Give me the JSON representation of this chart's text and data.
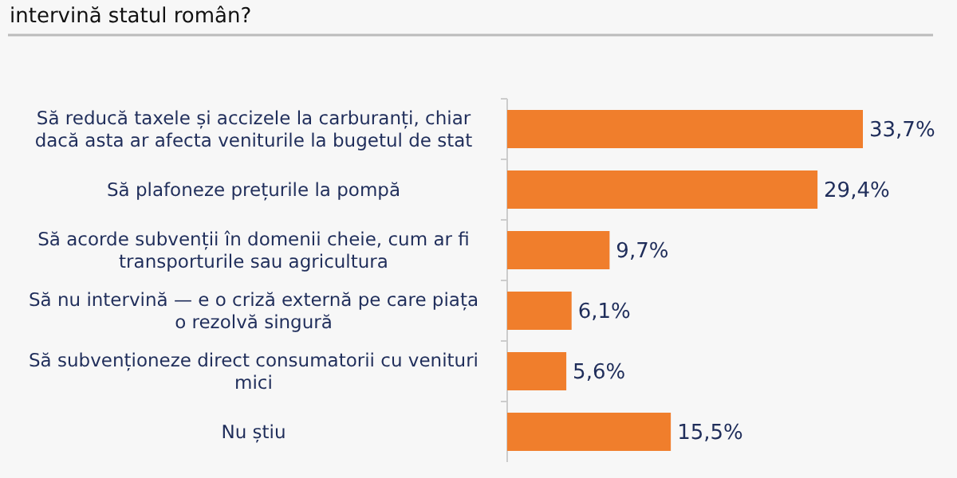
{
  "chart_data": {
    "type": "bar",
    "orientation": "horizontal",
    "title": "intervină statul român?",
    "categories": [
      "Să reducă taxele și accizele la carburanți, chiar dacă asta ar afecta veniturile la bugetul de stat",
      "Să plafoneze prețurile la pompă",
      "Să acorde subvenții în domenii cheie, cum ar fi transporturile sau agricultura",
      "Să nu intervină — e o criză externă pe care piața o rezolvă singură",
      "Să subvenționeze direct consumatorii cu venituri mici",
      "Nu știu"
    ],
    "values": [
      33.7,
      29.4,
      9.7,
      6.1,
      5.6,
      15.5
    ],
    "value_labels": [
      "33,7%",
      "29,4%",
      "9,7%",
      "6,1%",
      "5,6%",
      "15,5%"
    ],
    "color": "#f07e2c",
    "tick_labels": "y"
  }
}
